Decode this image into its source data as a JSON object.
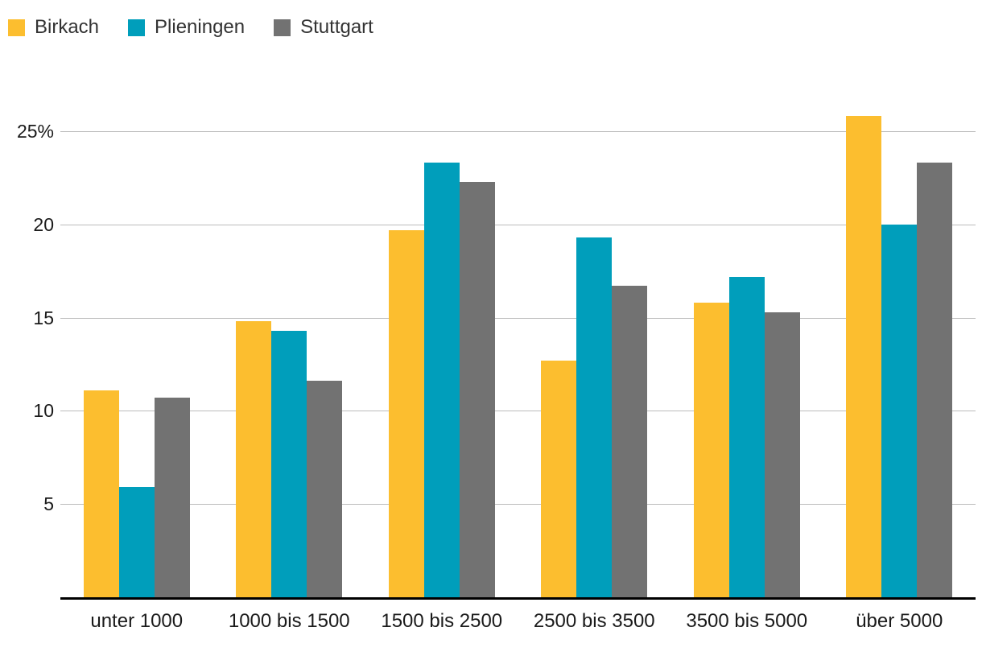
{
  "chart_data": {
    "type": "bar",
    "title": "",
    "categories": [
      "unter 1000",
      "1000 bis 1500",
      "1500 bis 2500",
      "2500 bis 3500",
      "3500 bis 5000",
      "über 5000"
    ],
    "series": [
      {
        "name": "Birkach",
        "color": "#FCBE2F",
        "values": [
          11.1,
          14.8,
          19.7,
          12.7,
          15.8,
          25.8
        ]
      },
      {
        "name": "Plieningen",
        "color": "#009EBB",
        "values": [
          5.9,
          14.3,
          23.3,
          19.3,
          17.2,
          20.0
        ]
      },
      {
        "name": "Stuttgart",
        "color": "#727272",
        "values": [
          10.7,
          11.6,
          22.3,
          16.7,
          15.3,
          23.3
        ]
      }
    ],
    "unit": "%",
    "yticks": [
      {
        "value": 5,
        "label": "5"
      },
      {
        "value": 10,
        "label": "10"
      },
      {
        "value": 15,
        "label": "15"
      },
      {
        "value": 20,
        "label": "20"
      },
      {
        "value": 25,
        "label": "25%"
      }
    ],
    "ylim": [
      0,
      26.9
    ],
    "xlabel": "",
    "ylabel": "",
    "grid": true,
    "legend_position": "top-left",
    "axis_line_color": "#000000",
    "gridline_color": "#bcbcbc",
    "text_color": "#333333"
  }
}
